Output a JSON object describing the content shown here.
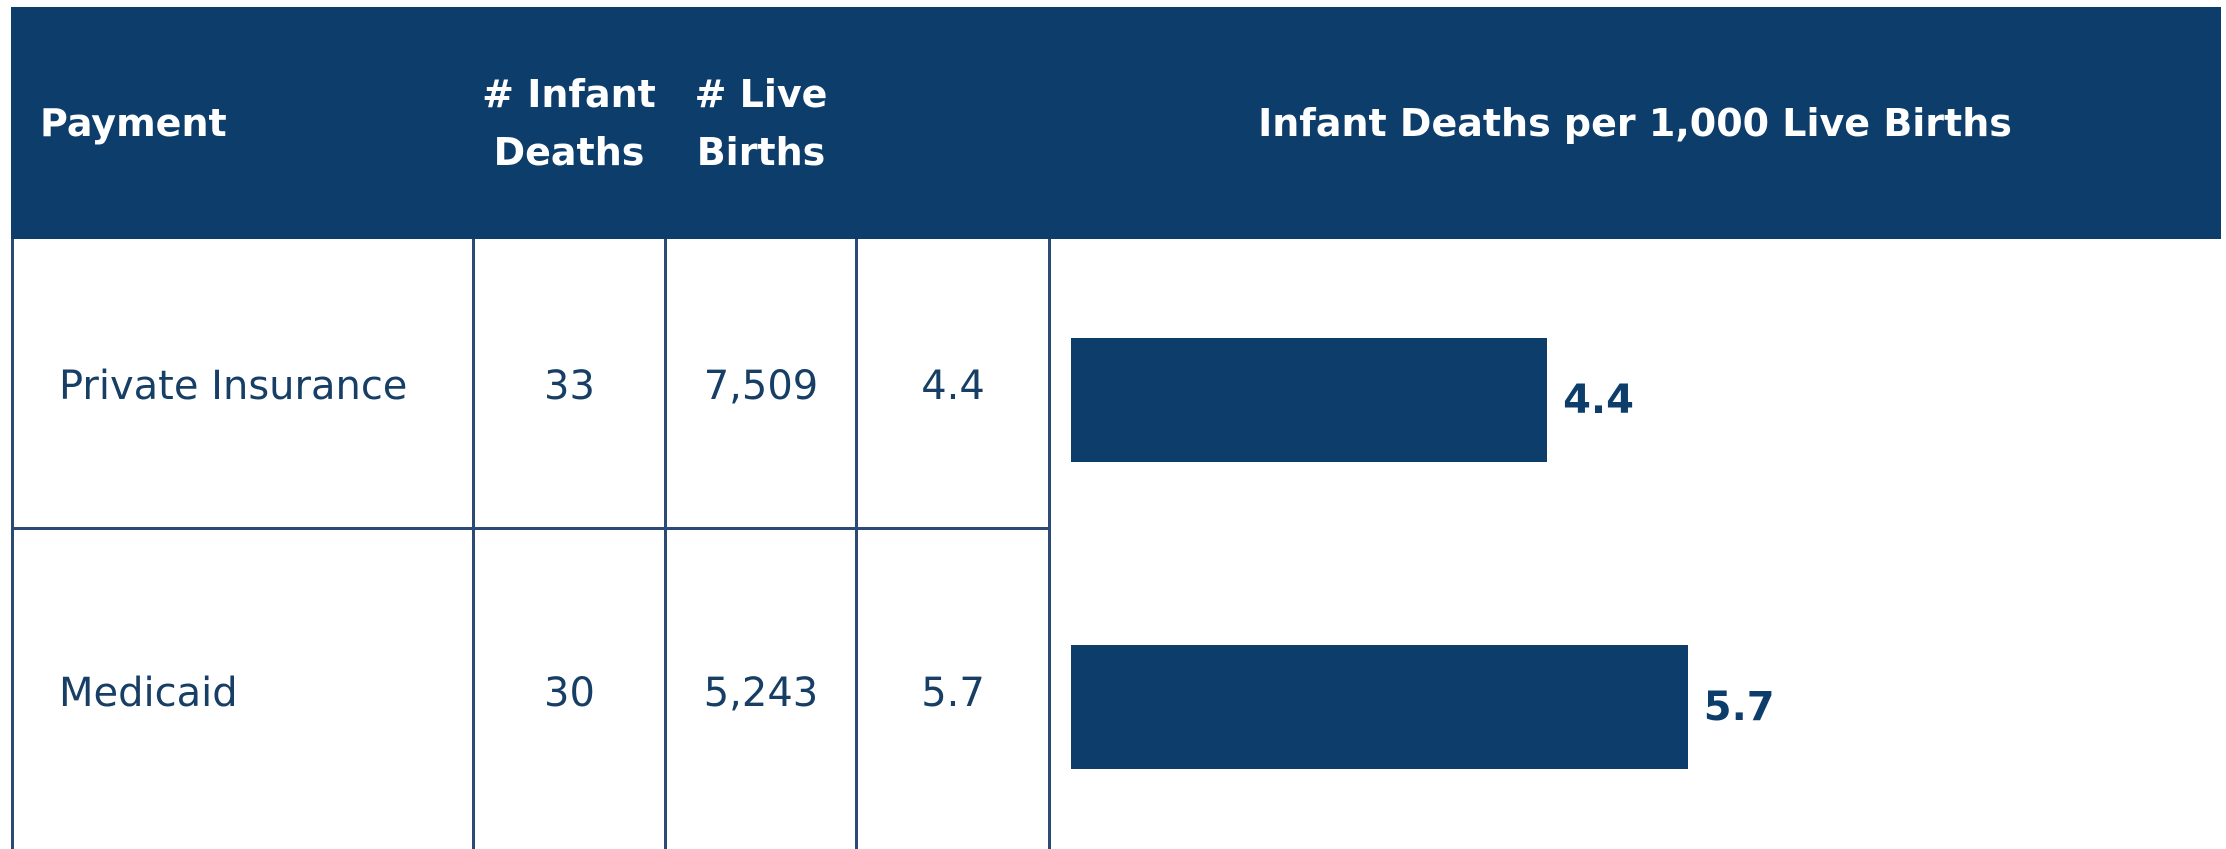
{
  "chart_data": {
    "type": "bar",
    "title": "Infant Deaths per 1,000 Live Births",
    "columns": [
      "Payment",
      "# Infant Deaths",
      "# Live Births"
    ],
    "categories": [
      "Private Insurance",
      "Medicaid"
    ],
    "infant_deaths": [
      33,
      30
    ],
    "live_births": [
      "7,509",
      "5,243"
    ],
    "values": [
      4.4,
      5.7
    ],
    "color": "#0d3d6b"
  }
}
